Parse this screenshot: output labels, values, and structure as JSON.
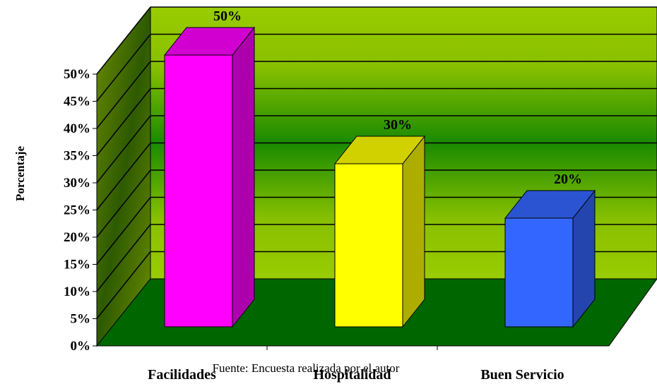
{
  "chart_data": {
    "type": "bar",
    "three_d": true,
    "categories": [
      "Facilidades",
      "Hospitalidad",
      "Buen Servicio"
    ],
    "values": [
      50,
      30,
      20
    ],
    "data_labels": [
      "50%",
      "30%",
      "20%"
    ],
    "ylabel": "Porcentaje",
    "ylim": [
      0,
      50
    ],
    "yticks": [
      "0%",
      "5%",
      "10%",
      "15%",
      "20%",
      "25%",
      "30%",
      "35%",
      "40%",
      "45%",
      "50%"
    ],
    "grid": true,
    "colors": {
      "bars": [
        "#ff00ff",
        "#ffff00",
        "#3366ff"
      ],
      "back_wall": "#99cc00",
      "back_wall_mid": "#1a8a00",
      "side_wall": "#5c7a00",
      "floor": "#006600"
    }
  },
  "footer": {
    "source": "Fuente: Encuesta realizada por el autor"
  }
}
